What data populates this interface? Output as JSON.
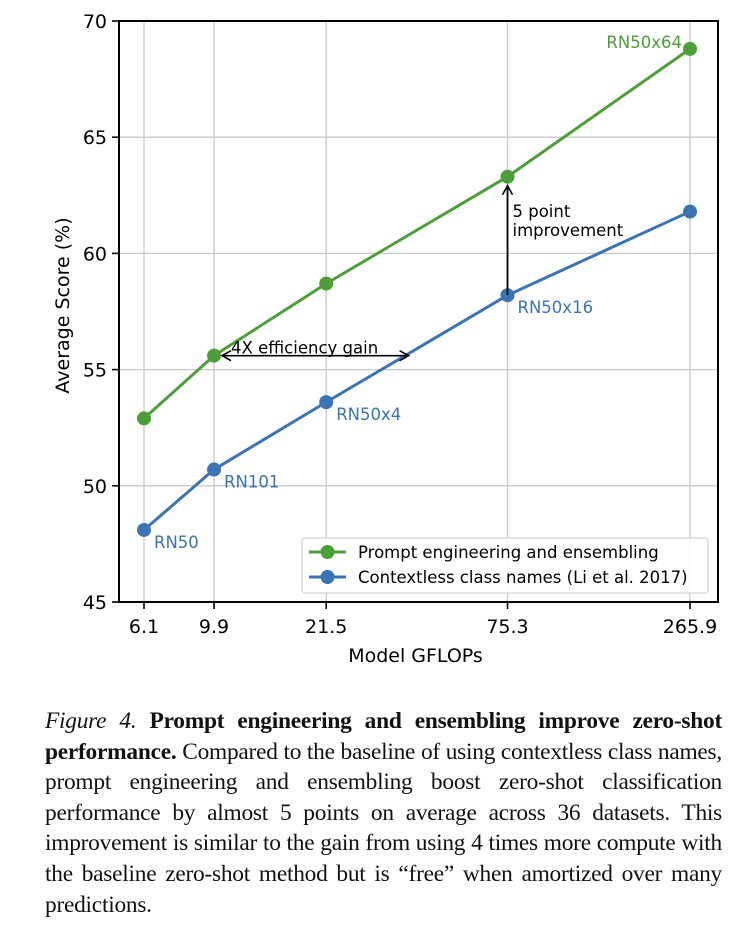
{
  "chart_data": {
    "type": "line",
    "title": "",
    "xlabel": "Model GFLOPs",
    "ylabel": "Average Score (%)",
    "x": [
      6.1,
      9.9,
      21.5,
      75.3,
      265.9
    ],
    "x_tick_labels": [
      "6.1",
      "9.9",
      "21.5",
      "75.3",
      "265.9"
    ],
    "x_scale": "log",
    "ylim": [
      45,
      70
    ],
    "y_ticks": [
      45,
      50,
      55,
      60,
      65,
      70
    ],
    "y_tick_labels": [
      "45",
      "50",
      "55",
      "60",
      "65",
      "70"
    ],
    "grid": true,
    "legend_position": "lower-right",
    "series": [
      {
        "name": "Prompt engineering and ensembling",
        "color": "#4c9f38",
        "values": [
          52.9,
          55.6,
          58.7,
          63.3,
          68.8
        ],
        "point_labels": [
          "",
          "",
          "",
          "",
          "RN50x64"
        ]
      },
      {
        "name": "Contextless class names (Li et al. 2017)",
        "color": "#3a74b4",
        "values": [
          48.1,
          50.7,
          53.6,
          58.2,
          61.8
        ],
        "point_labels": [
          "RN50",
          "RN101",
          "RN50x4",
          "RN50x16",
          ""
        ]
      }
    ],
    "annotations": [
      {
        "text": "4X efficiency gain",
        "type": "double-arrow-horizontal",
        "y": 55.6,
        "x_from": 9.9,
        "x_to": 38.0
      },
      {
        "text_lines": [
          "5 point",
          "improvement"
        ],
        "type": "arrow-vertical",
        "x": 75.3,
        "y_from": 58.2,
        "y_to": 63.3
      }
    ]
  },
  "caption": {
    "figure_label": "Figure 4.",
    "bold_text": "Prompt engineering and ensembling improve zero-shot performance.",
    "body_text": "Compared to the baseline of using contextless class names, prompt engineering and ensembling boost zero-shot classification performance by almost 5 points on average across 36 datasets. This improvement is similar to the gain from using 4 times more compute with the baseline zero-shot method but is “free” when amortized over many predictions."
  }
}
